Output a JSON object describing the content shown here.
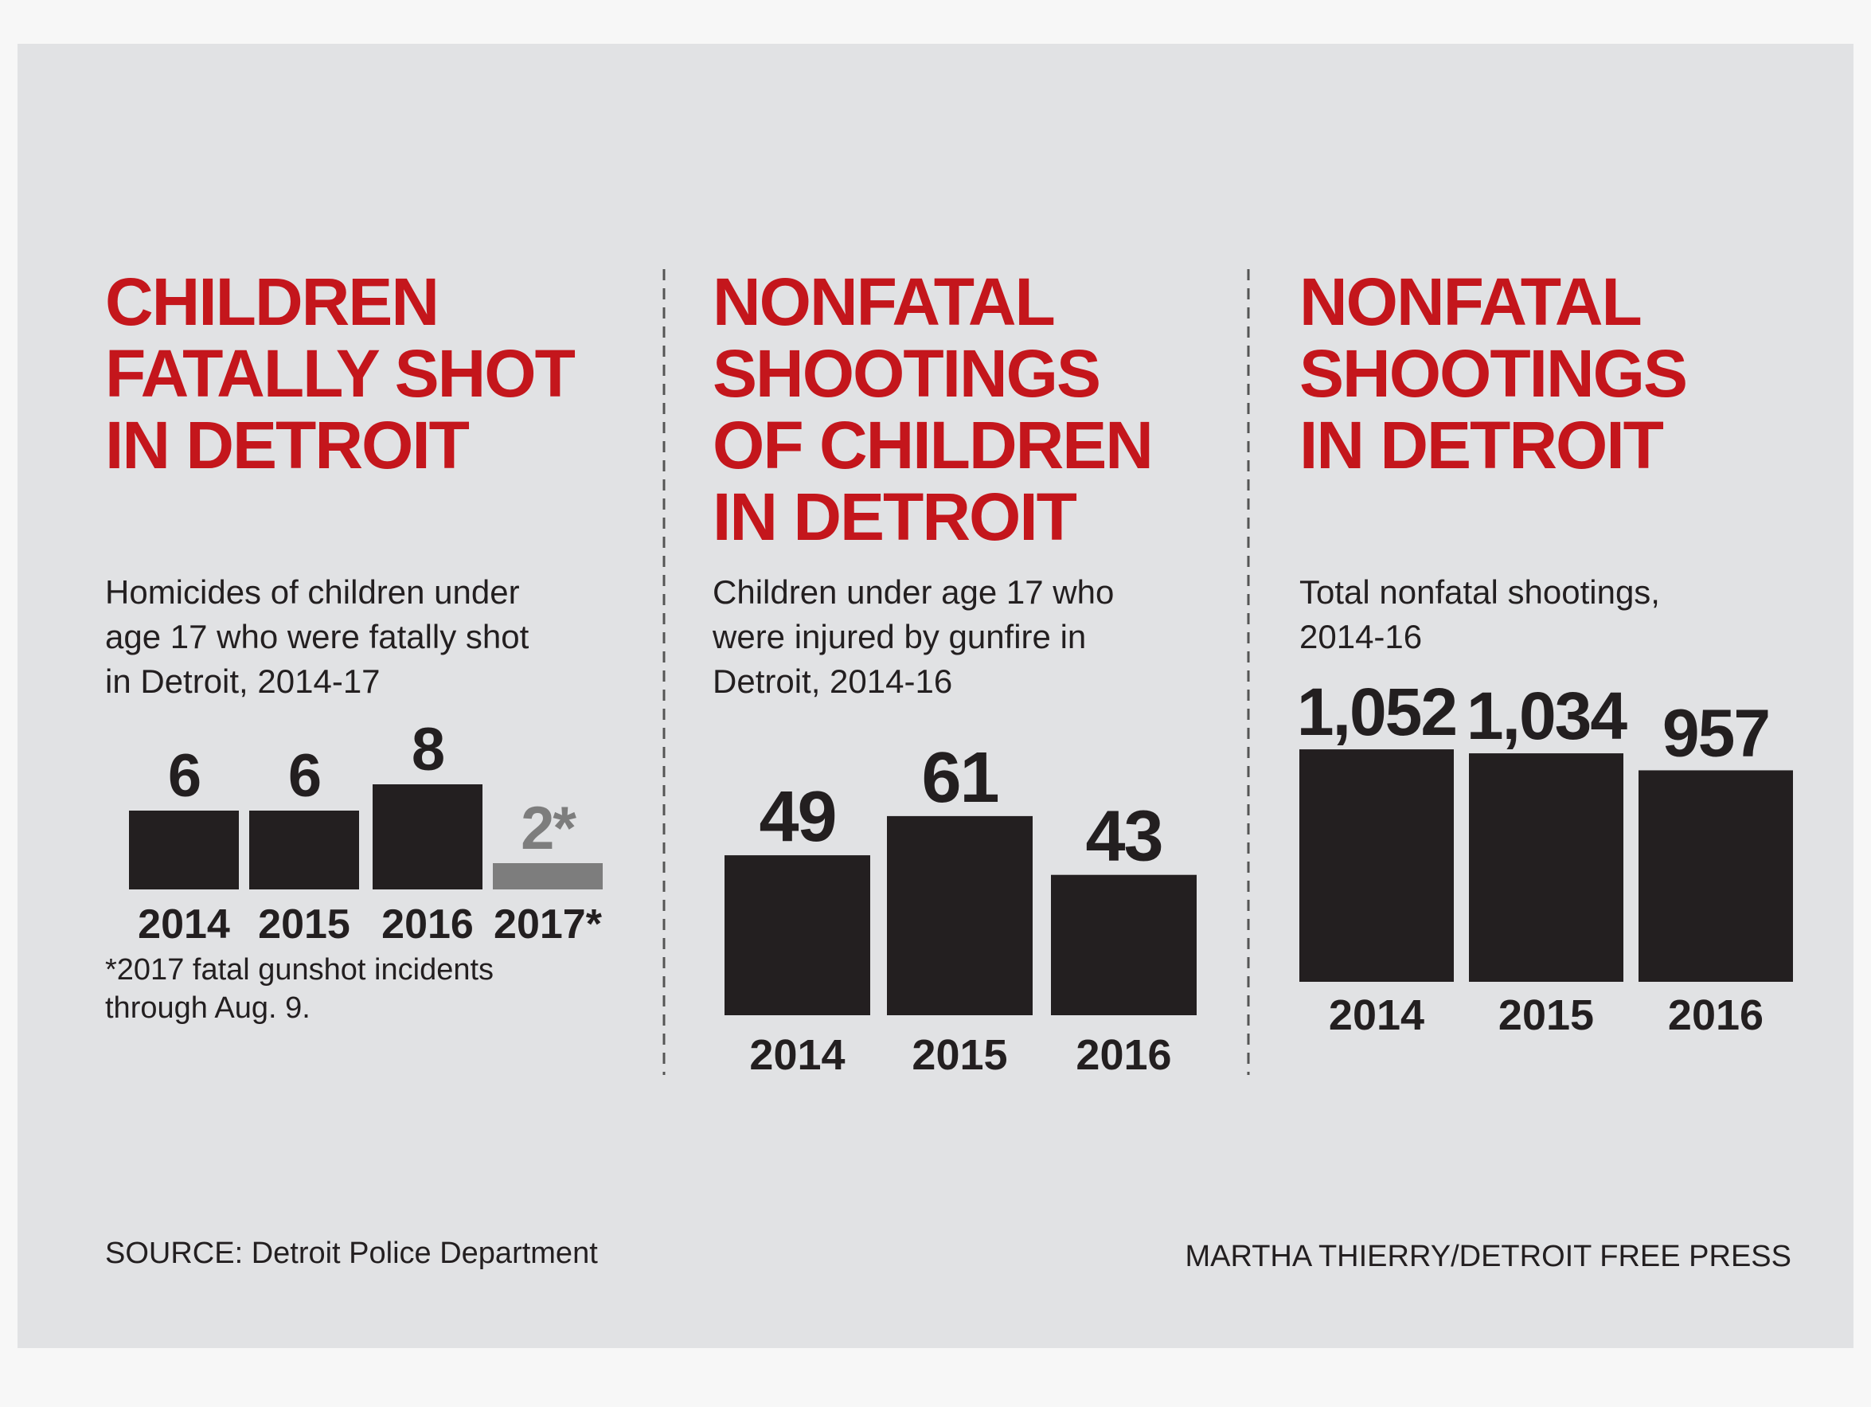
{
  "chart_data": [
    {
      "type": "bar",
      "title": [
        "CHILDREN",
        "FATALLY SHOT",
        "IN DETROIT"
      ],
      "subtitle": [
        "Homicides of children under",
        "age 17 who were fatally shot",
        "in Detroit, 2014-17"
      ],
      "categories": [
        "2014",
        "2015",
        "2016",
        "2017*"
      ],
      "values": [
        6,
        6,
        8,
        2
      ],
      "value_labels": [
        "6",
        "6",
        "8",
        "2*"
      ],
      "colors": [
        "#231f20",
        "#231f20",
        "#231f20",
        "#7d7d7d"
      ],
      "footnote": [
        "*2017 fatal gunshot incidents",
        "through Aug. 9."
      ]
    },
    {
      "type": "bar",
      "title": [
        "NONFATAL",
        "SHOOTINGS",
        "OF CHILDREN",
        "IN DETROIT"
      ],
      "subtitle": [
        "Children under age 17 who",
        "were injured by gunfire in",
        "Detroit, 2014-16"
      ],
      "categories": [
        "2014",
        "2015",
        "2016"
      ],
      "values": [
        49,
        61,
        43
      ],
      "colors": [
        "#231f20",
        "#231f20",
        "#231f20"
      ]
    },
    {
      "type": "bar",
      "title": [
        "NONFATAL",
        "SHOOTINGS",
        "IN DETROIT"
      ],
      "subtitle": [
        "Total nonfatal shootings,",
        "2014-16"
      ],
      "categories": [
        "2014",
        "2015",
        "2016"
      ],
      "values": [
        1052,
        1034,
        957
      ],
      "value_labels": [
        "1,052",
        "1,034",
        "957"
      ],
      "colors": [
        "#231f20",
        "#231f20",
        "#231f20"
      ]
    }
  ],
  "source": "SOURCE: Detroit Police Department",
  "credit": "MARTHA THIERRY/DETROIT FREE PRESS"
}
